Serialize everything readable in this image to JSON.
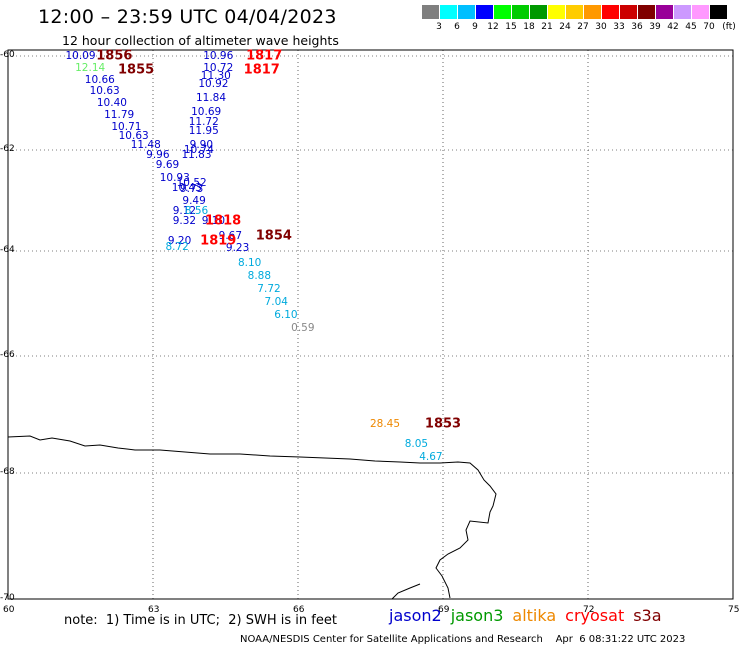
{
  "header": {
    "title": "12:00 – 23:59 UTC 04/04/2023",
    "subtitle": "12 hour collection of altimeter wave heights"
  },
  "scale": {
    "swatches": [
      "#7f7f7f",
      "#00ffff",
      "#00bfff",
      "#0000ff",
      "#00ff00",
      "#00cc00",
      "#009900",
      "#ffff00",
      "#ffcc00",
      "#ff9900",
      "#ff0000",
      "#cc0000",
      "#800000",
      "#990099",
      "#cc99ff",
      "#ff99ff",
      "#000000"
    ],
    "ticks": [
      "3",
      "6",
      "9",
      "12",
      "15",
      "18",
      "21",
      "24",
      "27",
      "30",
      "33",
      "36",
      "39",
      "42",
      "45",
      "70",
      "(ft)"
    ]
  },
  "axes": {
    "lat_labels": [
      "-60",
      "-62",
      "-64",
      "-66",
      "-68",
      "-70"
    ],
    "lon_labels": [
      "60",
      "63",
      "66",
      "69",
      "72",
      "75"
    ]
  },
  "map": {
    "lon_range": [
      60,
      75
    ],
    "lat_range": [
      -60,
      -70
    ],
    "coastline_color": "#000000",
    "grid": "dotted"
  },
  "observations": [
    {
      "v": "10.09",
      "lon": 61.5,
      "lat": -60.0,
      "color": "#0000cc"
    },
    {
      "v": "12.14",
      "lon": 61.7,
      "lat": -60.25,
      "color": "#66ee66"
    },
    {
      "v": "10.66",
      "lon": 61.9,
      "lat": -60.5,
      "color": "#0000cc"
    },
    {
      "v": "10.63",
      "lon": 62.0,
      "lat": -60.75,
      "color": "#0000cc"
    },
    {
      "v": "10.40",
      "lon": 62.15,
      "lat": -61.0,
      "color": "#0000cc"
    },
    {
      "v": "11.79",
      "lon": 62.3,
      "lat": -61.25,
      "color": "#0000cc"
    },
    {
      "v": "10.71",
      "lon": 62.45,
      "lat": -61.5,
      "color": "#0000cc"
    },
    {
      "v": "10.63",
      "lon": 62.6,
      "lat": -61.7,
      "color": "#0000cc"
    },
    {
      "v": "11.48",
      "lon": 62.85,
      "lat": -61.9,
      "color": "#0000cc"
    },
    {
      "v": "9.96",
      "lon": 63.1,
      "lat": -62.1,
      "color": "#0000cc"
    },
    {
      "v": "9.69",
      "lon": 63.3,
      "lat": -62.3,
      "color": "#0000cc"
    },
    {
      "v": "10.93",
      "lon": 63.45,
      "lat": -62.55,
      "color": "#0000cc"
    },
    {
      "v": "10.52",
      "lon": 63.8,
      "lat": -62.65,
      "color": "#0000cc"
    },
    {
      "v": "10.43",
      "lon": 63.7,
      "lat": -62.75,
      "color": "#0000cc"
    },
    {
      "v": "9.73",
      "lon": 63.8,
      "lat": -62.78,
      "color": "#0000cc"
    },
    {
      "v": "9.49",
      "lon": 63.85,
      "lat": -63.0,
      "color": "#0000cc"
    },
    {
      "v": "9.12",
      "lon": 63.65,
      "lat": -63.2,
      "color": "#0000cc"
    },
    {
      "v": "8.56",
      "lon": 63.9,
      "lat": -63.2,
      "color": "#00aadd"
    },
    {
      "v": "9.32",
      "lon": 63.65,
      "lat": -63.4,
      "color": "#0000cc"
    },
    {
      "v": "9.10",
      "lon": 64.25,
      "lat": -63.4,
      "color": "#0000cc"
    },
    {
      "v": "9.67",
      "lon": 64.6,
      "lat": -63.7,
      "color": "#0000cc"
    },
    {
      "v": "9.20",
      "lon": 63.55,
      "lat": -63.8,
      "color": "#0000cc"
    },
    {
      "v": "8.72",
      "lon": 63.5,
      "lat": -63.93,
      "color": "#00aadd"
    },
    {
      "v": "9.23",
      "lon": 64.75,
      "lat": -63.95,
      "color": "#0000cc"
    },
    {
      "v": "8.10",
      "lon": 65.0,
      "lat": -64.22,
      "color": "#00aadd"
    },
    {
      "v": "8.88",
      "lon": 65.2,
      "lat": -64.47,
      "color": "#00aadd"
    },
    {
      "v": "7.72",
      "lon": 65.4,
      "lat": -64.72,
      "color": "#00aadd"
    },
    {
      "v": "7.04",
      "lon": 65.55,
      "lat": -64.97,
      "color": "#00aadd"
    },
    {
      "v": "6.10",
      "lon": 65.75,
      "lat": -65.22,
      "color": "#00aadd"
    },
    {
      "v": "0.59",
      "lon": 66.1,
      "lat": -65.47,
      "color": "#888888"
    },
    {
      "v": "10.96",
      "lon": 64.35,
      "lat": -60.0,
      "color": "#0000cc"
    },
    {
      "v": "10.72",
      "lon": 64.35,
      "lat": -60.25,
      "color": "#0000cc"
    },
    {
      "v": "11.30",
      "lon": 64.3,
      "lat": -60.43,
      "color": "#0000cc"
    },
    {
      "v": "10.92",
      "lon": 64.25,
      "lat": -60.6,
      "color": "#0000cc"
    },
    {
      "v": "11.84",
      "lon": 64.2,
      "lat": -60.9,
      "color": "#0000cc"
    },
    {
      "v": "10.69",
      "lon": 64.1,
      "lat": -61.2,
      "color": "#0000cc"
    },
    {
      "v": "11.72",
      "lon": 64.05,
      "lat": -61.4,
      "color": "#0000cc"
    },
    {
      "v": "11.95",
      "lon": 64.05,
      "lat": -61.6,
      "color": "#0000cc"
    },
    {
      "v": "9.90",
      "lon": 64.0,
      "lat": -61.9,
      "color": "#0000cc"
    },
    {
      "v": "10.74",
      "lon": 63.95,
      "lat": -62.0,
      "color": "#0000cc"
    },
    {
      "v": "11.83",
      "lon": 63.9,
      "lat": -62.1,
      "color": "#0000cc"
    },
    {
      "v": "28.45",
      "lon": 67.8,
      "lat": -67.17,
      "color": "#ee8800"
    },
    {
      "v": "8.05",
      "lon": 68.45,
      "lat": -67.5,
      "color": "#00aadd"
    },
    {
      "v": "4.67",
      "lon": 68.75,
      "lat": -67.73,
      "color": "#00aadd"
    }
  ],
  "time_labels": [
    {
      "t": "1856",
      "lon": 62.2,
      "lat": -60.0,
      "color": "#800000"
    },
    {
      "t": "1855",
      "lon": 62.65,
      "lat": -60.3,
      "color": "#800000"
    },
    {
      "t": "1817",
      "lon": 65.3,
      "lat": -60.0,
      "color": "#ff0000"
    },
    {
      "t": "1817",
      "lon": 65.25,
      "lat": -60.3,
      "color": "#ff0000"
    },
    {
      "t": "1818",
      "lon": 64.45,
      "lat": -63.4,
      "color": "#ff0000"
    },
    {
      "t": "1819",
      "lon": 64.35,
      "lat": -63.8,
      "color": "#ff0000"
    },
    {
      "t": "1854",
      "lon": 65.5,
      "lat": -63.7,
      "color": "#800000"
    },
    {
      "t": "1853",
      "lon": 69.0,
      "lat": -67.17,
      "color": "#800000"
    }
  ],
  "footer": {
    "note": "note:  1) Time is in UTC;  2) SWH is in feet",
    "legend": [
      {
        "name": "jason2",
        "color": "#0000cc"
      },
      {
        "name": "jason3",
        "color": "#009900"
      },
      {
        "name": "altika",
        "color": "#ee8800"
      },
      {
        "name": "cryosat",
        "color": "#ff0000"
      },
      {
        "name": "s3a",
        "color": "#800000"
      }
    ],
    "credit": "NOAA/NESDIS Center for Satellite Applications and Research    Apr  6 08:31:22 UTC 2023"
  }
}
